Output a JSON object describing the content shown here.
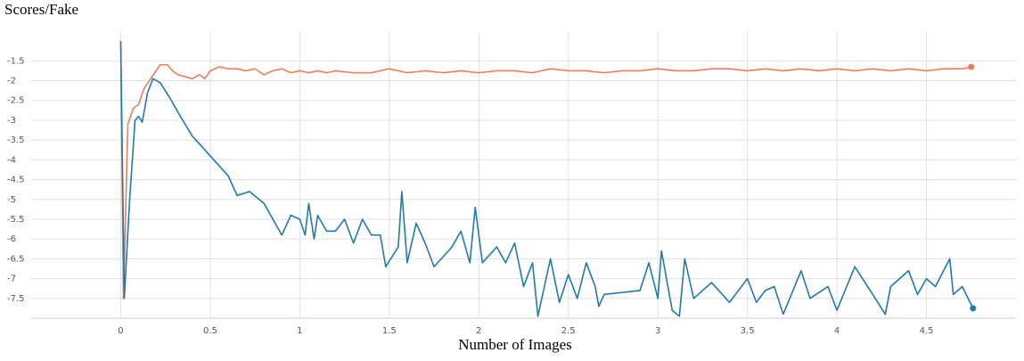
{
  "chart_data": {
    "type": "line",
    "title": "Scores/Fake",
    "x_label": "Number of Images",
    "xlim": [
      -0.5,
      5
    ],
    "ylim": [
      -8,
      -0.75
    ],
    "xticks": [
      0,
      0.5,
      1,
      1.5,
      2,
      2.5,
      3,
      3.5,
      4,
      4.5
    ],
    "yticks": [
      -1.5,
      -2,
      -2.5,
      -3,
      -3.5,
      -4,
      -4.5,
      -5,
      -5.5,
      -6,
      -6.5,
      -7,
      -7.5
    ],
    "grid": true,
    "series": [
      {
        "color": "#ef7d57",
        "x": [
          0,
          0.015,
          0.04,
          0.07,
          0.1,
          0.13,
          0.16,
          0.19,
          0.22,
          0.26,
          0.29,
          0.32,
          0.36,
          0.4,
          0.44,
          0.47,
          0.5,
          0.55,
          0.6,
          0.65,
          0.7,
          0.75,
          0.8,
          0.85,
          0.9,
          0.95,
          1.0,
          1.05,
          1.1,
          1.15,
          1.2,
          1.3,
          1.4,
          1.5,
          1.6,
          1.7,
          1.8,
          1.9,
          2.0,
          2.1,
          2.2,
          2.3,
          2.4,
          2.5,
          2.6,
          2.7,
          2.8,
          2.9,
          3.0,
          3.1,
          3.2,
          3.3,
          3.4,
          3.5,
          3.6,
          3.7,
          3.8,
          3.9,
          4.0,
          4.1,
          4.2,
          4.3,
          4.4,
          4.5,
          4.6,
          4.7,
          4.75
        ],
        "values": [
          -1,
          -7.5,
          -3.1,
          -2.7,
          -2.6,
          -2.2,
          -2.0,
          -1.8,
          -1.6,
          -1.6,
          -1.75,
          -1.85,
          -1.9,
          -1.95,
          -1.85,
          -1.95,
          -1.75,
          -1.65,
          -1.7,
          -1.7,
          -1.75,
          -1.7,
          -1.85,
          -1.75,
          -1.7,
          -1.8,
          -1.75,
          -1.8,
          -1.75,
          -1.8,
          -1.75,
          -1.8,
          -1.8,
          -1.7,
          -1.8,
          -1.75,
          -1.8,
          -1.75,
          -1.8,
          -1.75,
          -1.75,
          -1.8,
          -1.7,
          -1.75,
          -1.75,
          -1.8,
          -1.75,
          -1.75,
          -1.7,
          -1.75,
          -1.75,
          -1.7,
          -1.7,
          -1.75,
          -1.7,
          -1.75,
          -1.7,
          -1.75,
          -1.7,
          -1.75,
          -1.7,
          -1.75,
          -1.7,
          -1.75,
          -1.7,
          -1.7,
          -1.65
        ]
      },
      {
        "color": "#1f7bab",
        "x": [
          0,
          0.02,
          0.05,
          0.08,
          0.1,
          0.12,
          0.15,
          0.18,
          0.22,
          0.27,
          0.32,
          0.4,
          0.5,
          0.6,
          0.65,
          0.72,
          0.8,
          0.9,
          0.95,
          1.0,
          1.03,
          1.05,
          1.08,
          1.1,
          1.15,
          1.2,
          1.25,
          1.3,
          1.35,
          1.4,
          1.45,
          1.48,
          1.55,
          1.57,
          1.6,
          1.65,
          1.7,
          1.75,
          1.85,
          1.9,
          1.95,
          1.98,
          2.02,
          2.1,
          2.15,
          2.2,
          2.25,
          2.3,
          2.33,
          2.4,
          2.45,
          2.5,
          2.55,
          2.6,
          2.65,
          2.67,
          2.7,
          2.9,
          2.95,
          3.0,
          3.02,
          3.08,
          3.12,
          3.15,
          3.2,
          3.3,
          3.4,
          3.5,
          3.55,
          3.6,
          3.65,
          3.7,
          3.8,
          3.85,
          3.95,
          4.0,
          4.1,
          4.2,
          4.27,
          4.3,
          4.4,
          4.45,
          4.5,
          4.55,
          4.63,
          4.65,
          4.7,
          4.76
        ],
        "values": [
          -1,
          -7.5,
          -5,
          -3,
          -2.9,
          -3.05,
          -2.3,
          -1.95,
          -2.05,
          -2.4,
          -2.8,
          -3.4,
          -3.9,
          -4.4,
          -4.9,
          -4.8,
          -5.1,
          -5.9,
          -5.4,
          -5.5,
          -5.9,
          -5.1,
          -6,
          -5.4,
          -5.8,
          -5.8,
          -5.5,
          -6.1,
          -5.5,
          -5.9,
          -5.9,
          -6.7,
          -6.2,
          -4.8,
          -6.6,
          -5.6,
          -6.1,
          -6.7,
          -6.2,
          -5.8,
          -6.6,
          -5.2,
          -6.6,
          -6.2,
          -6.6,
          -6.1,
          -7.2,
          -6.6,
          -7.95,
          -6.5,
          -7.6,
          -6.9,
          -7.5,
          -6.6,
          -7.2,
          -7.7,
          -7.4,
          -7.3,
          -6.6,
          -7.5,
          -6.3,
          -7.8,
          -7.95,
          -6.5,
          -7.5,
          -7.1,
          -7.6,
          -7.0,
          -7.6,
          -7.3,
          -7.2,
          -7.9,
          -6.8,
          -7.5,
          -7.2,
          -7.8,
          -6.7,
          -7.4,
          -7.9,
          -7.2,
          -6.8,
          -7.4,
          -7.0,
          -7.2,
          -6.5,
          -7.4,
          -7.2,
          -7.75
        ]
      }
    ]
  }
}
